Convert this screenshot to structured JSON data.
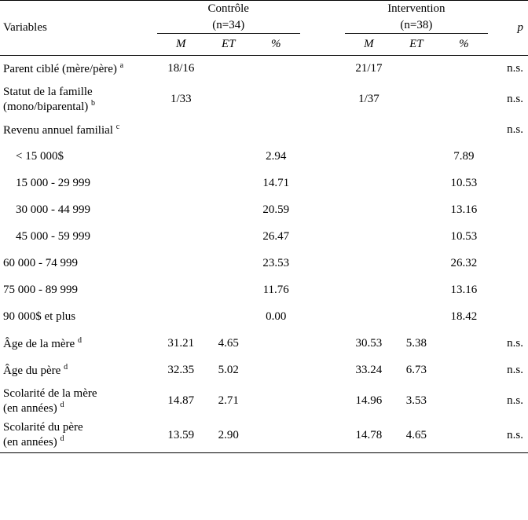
{
  "header": {
    "variables": "Variables",
    "group1": "Contrôle",
    "group1_n": "(n=34)",
    "group2": "Intervention",
    "group2_n": "(n=38)",
    "p": "p",
    "M": "M",
    "ET": "ET",
    "pct": "%"
  },
  "rows": [
    {
      "label": "Parent ciblé (mère/père)",
      "sup": "a",
      "m1": "18/16",
      "et1": "",
      "p1": "",
      "m2": "21/17",
      "et2": "",
      "p2": "",
      "sig": "n.s."
    },
    {
      "label": "Statut de la famille\n(mono/biparental)",
      "sup": "b",
      "m1": "1/33",
      "et1": "",
      "p1": "",
      "m2": "1/37",
      "et2": "",
      "p2": "",
      "sig": "n.s.",
      "tall": true
    },
    {
      "label": "Revenu annuel familial",
      "sup": "c",
      "m1": "",
      "et1": "",
      "p1": "",
      "m2": "",
      "et2": "",
      "p2": "",
      "sig": "n.s."
    },
    {
      "label": "< 15 000$",
      "indent": true,
      "m1": "",
      "et1": "",
      "p1": "2.94",
      "m2": "",
      "et2": "",
      "p2": "7.89",
      "sig": ""
    },
    {
      "label": "15 000 - 29 999",
      "indent": true,
      "m1": "",
      "et1": "",
      "p1": "14.71",
      "m2": "",
      "et2": "",
      "p2": "10.53",
      "sig": ""
    },
    {
      "label": "30 000 - 44 999",
      "indent": true,
      "m1": "",
      "et1": "",
      "p1": "20.59",
      "m2": "",
      "et2": "",
      "p2": "13.16",
      "sig": ""
    },
    {
      "label": "45 000 - 59 999",
      "indent": true,
      "m1": "",
      "et1": "",
      "p1": "26.47",
      "m2": "",
      "et2": "",
      "p2": "10.53",
      "sig": ""
    },
    {
      "label": "60 000 - 74 999",
      "m1": "",
      "et1": "",
      "p1": "23.53",
      "m2": "",
      "et2": "",
      "p2": "26.32",
      "sig": ""
    },
    {
      "label": "75 000 - 89 999",
      "m1": "",
      "et1": "",
      "p1": "11.76",
      "m2": "",
      "et2": "",
      "p2": "13.16",
      "sig": ""
    },
    {
      "label": "90 000$ et plus",
      "m1": "",
      "et1": "",
      "p1": "0.00",
      "m2": "",
      "et2": "",
      "p2": "18.42",
      "sig": ""
    },
    {
      "label": "Âge de la mère",
      "sup": "d",
      "m1": "31.21",
      "et1": "4.65",
      "p1": "",
      "m2": "30.53",
      "et2": "5.38",
      "p2": "",
      "sig": "n.s."
    },
    {
      "label": "Âge du père",
      "sup": "d",
      "m1": "32.35",
      "et1": "5.02",
      "p1": "",
      "m2": "33.24",
      "et2": "6.73",
      "p2": "",
      "sig": "n.s."
    },
    {
      "label": "Scolarité de la mère\n(en années)",
      "sup": "d",
      "m1": "14.87",
      "et1": "2.71",
      "p1": "",
      "m2": "14.96",
      "et2": "3.53",
      "p2": "",
      "sig": "n.s.",
      "tall": true
    },
    {
      "label": "Scolarité du père\n(en années)",
      "sup": "d",
      "m1": "13.59",
      "et1": "2.90",
      "p1": "",
      "m2": "14.78",
      "et2": "4.65",
      "p2": "",
      "sig": "n.s.",
      "tall": true
    }
  ]
}
